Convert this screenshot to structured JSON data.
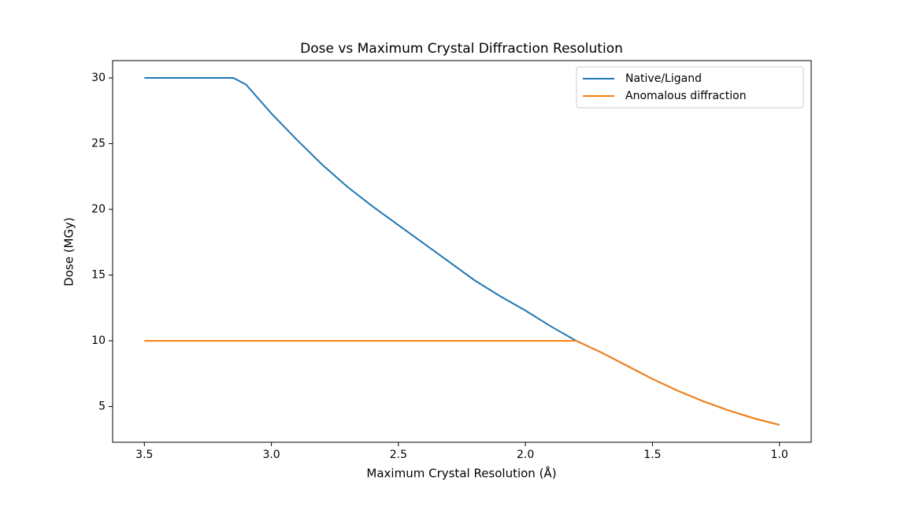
{
  "chart_data": {
    "type": "line",
    "title": "Dose vs Maximum Crystal Diffraction Resolution",
    "xlabel": "Maximum Crystal Resolution (Å)",
    "ylabel": "Dose (MGy)",
    "x": [
      3.5,
      3.4,
      3.3,
      3.2,
      3.15,
      3.1,
      3.0,
      2.9,
      2.8,
      2.7,
      2.6,
      2.5,
      2.4,
      2.3,
      2.2,
      2.1,
      2.0,
      1.9,
      1.8,
      1.7,
      1.6,
      1.5,
      1.4,
      1.3,
      1.2,
      1.1,
      1.0
    ],
    "series": [
      {
        "name": "Native/Ligand",
        "color": "#1f77b4",
        "values": [
          30,
          30,
          30,
          30,
          30,
          29.5,
          27.3,
          25.3,
          23.4,
          21.7,
          20.2,
          18.8,
          17.4,
          16.0,
          14.6,
          13.4,
          12.3,
          11.1,
          10.0,
          9.1,
          8.1,
          7.1,
          6.2,
          5.4,
          4.7,
          4.1,
          3.6
        ]
      },
      {
        "name": "Anomalous diffraction",
        "color": "#ff7f0e",
        "values": [
          10,
          10,
          10,
          10,
          10,
          10,
          10,
          10,
          10,
          10,
          10,
          10,
          10,
          10,
          10,
          10,
          10,
          10,
          10.0,
          9.1,
          8.1,
          7.1,
          6.2,
          5.4,
          4.7,
          4.1,
          3.6
        ]
      }
    ],
    "xlim": [
      3.625,
      0.875
    ],
    "xticks": [
      3.5,
      {
        "value": 3.0,
        "label": "3.0"
      },
      2.5,
      {
        "value": 2.0,
        "label": "2.0"
      },
      1.5,
      {
        "value": 1.0,
        "label": "1.0"
      }
    ],
    "ylim": [
      2.28,
      31.32
    ],
    "yticks": [
      5,
      10,
      15,
      20,
      25,
      30
    ],
    "grid": false,
    "legend": "upper right"
  }
}
